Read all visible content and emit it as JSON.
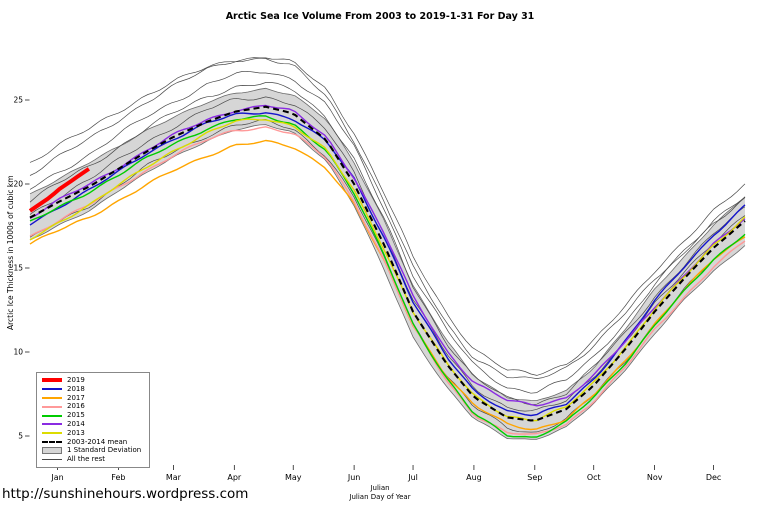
{
  "page": {
    "footer_url": "http://sunshinehours.wordpress.com"
  },
  "chart_data": {
    "type": "line",
    "title": "Arctic Sea Ice Volume From 2003 to 2019-1-31  For Day 31",
    "ylabel": "Arctic Ice Thickness in 1000s of cubic km",
    "xlabel_line1": "Julian",
    "xlabel_line2": "Julian Day of Year",
    "ylim": [
      4,
      28.5
    ],
    "yticks": [
      5,
      10,
      15,
      20,
      25
    ],
    "months": [
      "Jan",
      "Feb",
      "Mar",
      "Apr",
      "May",
      "Jun",
      "Jul",
      "Aug",
      "Sep",
      "Oct",
      "Nov",
      "Dec"
    ],
    "month_days": [
      15,
      46,
      74,
      105,
      135,
      166,
      196,
      227,
      258,
      288,
      319,
      349
    ],
    "grid": false,
    "legend_position": "bottom-left",
    "x": [
      1,
      15,
      32,
      46,
      60,
      74,
      91,
      105,
      121,
      135,
      152,
      166,
      182,
      196,
      213,
      227,
      244,
      258,
      274,
      288,
      305,
      319,
      335,
      349,
      365
    ],
    "mean": {
      "name": "2003-2014 mean",
      "color": "#000000",
      "values": [
        18.0,
        18.9,
        19.9,
        20.9,
        21.9,
        22.8,
        23.7,
        24.3,
        24.6,
        24.2,
        22.6,
        20.0,
        16.2,
        12.4,
        9.3,
        7.3,
        6.1,
        5.9,
        6.6,
        8.0,
        10.3,
        12.4,
        14.5,
        16.2,
        17.8
      ]
    },
    "sd": [
      1.4,
      1.4,
      1.4,
      1.3,
      1.3,
      1.2,
      1.1,
      1.1,
      1.1,
      1.1,
      1.2,
      1.3,
      1.5,
      1.5,
      1.4,
      1.3,
      1.2,
      1.1,
      1.1,
      1.1,
      1.2,
      1.3,
      1.3,
      1.4,
      1.4
    ],
    "band_color": "#D6D6D6",
    "band_edge_color": "#6a6a6a",
    "rest_color": "#4a4a4a",
    "series": [
      {
        "name": "2018",
        "color": "#1414CC",
        "values": [
          17.6,
          18.6,
          19.7,
          20.7,
          21.8,
          22.7,
          23.6,
          24.1,
          24.3,
          23.9,
          22.5,
          20.3,
          16.7,
          13.0,
          9.7,
          7.7,
          6.5,
          6.2,
          6.9,
          8.4,
          10.8,
          13.0,
          15.2,
          17.0,
          18.7
        ]
      },
      {
        "name": "2017",
        "color": "#FFA500",
        "values": [
          16.4,
          17.2,
          18.1,
          19.0,
          19.9,
          20.8,
          21.7,
          22.3,
          22.5,
          22.2,
          21.0,
          18.8,
          15.2,
          11.6,
          8.6,
          6.8,
          5.7,
          5.4,
          6.0,
          7.4,
          9.6,
          11.7,
          13.8,
          15.5,
          16.9
        ]
      },
      {
        "name": "2016",
        "color": "#FF9999",
        "values": [
          16.9,
          17.8,
          18.8,
          19.8,
          20.8,
          21.7,
          22.6,
          23.2,
          23.4,
          23.0,
          21.5,
          19.0,
          15.3,
          11.5,
          8.3,
          6.3,
          5.2,
          5.0,
          5.7,
          7.1,
          9.2,
          11.3,
          13.4,
          15.1,
          16.6
        ]
      },
      {
        "name": "2015",
        "color": "#00CC00",
        "values": [
          17.7,
          18.6,
          19.6,
          20.5,
          21.5,
          22.4,
          23.3,
          23.8,
          24.0,
          23.6,
          22.0,
          19.4,
          15.6,
          11.7,
          8.4,
          6.3,
          5.1,
          4.9,
          5.8,
          7.3,
          9.5,
          11.6,
          13.7,
          15.5,
          17.1
        ]
      },
      {
        "name": "2014",
        "color": "#8A2BE2",
        "values": [
          18.0,
          19.0,
          20.0,
          21.0,
          22.0,
          22.9,
          23.8,
          24.4,
          24.7,
          24.3,
          22.8,
          20.4,
          16.9,
          13.3,
          10.1,
          8.2,
          7.1,
          6.8,
          7.3,
          8.6,
          10.7,
          12.7,
          14.7,
          16.4,
          17.9
        ]
      },
      {
        "name": "2013",
        "color": "#DCDC00",
        "values": [
          16.7,
          17.7,
          18.8,
          19.9,
          21.0,
          22.0,
          23.0,
          23.7,
          23.9,
          23.5,
          22.0,
          19.6,
          16.0,
          12.4,
          9.3,
          7.4,
          6.2,
          5.9,
          6.7,
          8.2,
          10.4,
          12.5,
          14.6,
          16.4,
          18.0
        ]
      }
    ],
    "series_2019": {
      "name": "2019",
      "color": "#FF0000",
      "x": [
        1,
        6,
        11,
        16,
        21,
        26,
        31
      ],
      "values": [
        18.4,
        18.8,
        19.2,
        19.7,
        20.1,
        20.5,
        20.9
      ]
    },
    "all_the_rest": [
      [
        20.6,
        21.6,
        22.7,
        23.8,
        24.9,
        25.8,
        26.8,
        27.4,
        27.6,
        27.2,
        25.6,
        23.1,
        19.3,
        15.6,
        12.3,
        10.2,
        8.9,
        8.6,
        9.3,
        10.7,
        12.8,
        14.8,
        16.8,
        18.4,
        19.9
      ],
      [
        19.7,
        20.7,
        21.8,
        22.9,
        24.0,
        24.9,
        25.9,
        26.5,
        26.7,
        26.3,
        24.7,
        22.2,
        18.4,
        14.6,
        11.3,
        9.2,
        7.9,
        7.6,
        8.3,
        9.7,
        11.9,
        14.0,
        16.0,
        17.7,
        19.2
      ],
      [
        19.0,
        20.0,
        21.1,
        22.2,
        23.3,
        24.2,
        25.2,
        25.8,
        26.0,
        25.6,
        24.0,
        21.5,
        17.7,
        13.9,
        10.6,
        8.5,
        7.2,
        6.9,
        7.6,
        9.1,
        11.2,
        13.3,
        15.3,
        17.0,
        18.6
      ],
      [
        18.2,
        19.2,
        20.3,
        21.4,
        22.5,
        23.4,
        24.4,
        25.0,
        25.2,
        24.8,
        23.2,
        20.7,
        16.9,
        13.1,
        9.9,
        7.9,
        6.7,
        6.4,
        7.1,
        8.6,
        10.7,
        12.8,
        14.9,
        16.6,
        18.1
      ],
      [
        16.7,
        17.7,
        18.8,
        19.9,
        21.0,
        21.9,
        22.9,
        23.5,
        23.7,
        23.3,
        21.7,
        19.2,
        15.4,
        11.7,
        8.6,
        6.7,
        5.5,
        5.2,
        6.0,
        7.4,
        9.6,
        11.7,
        13.8,
        15.5,
        17.0
      ],
      [
        21.3,
        22.3,
        23.3,
        24.3,
        25.3,
        26.1,
        26.9,
        27.4,
        27.5,
        27.0,
        25.2,
        22.6,
        18.8,
        15.0,
        11.7,
        9.7,
        8.5,
        8.3,
        9.1,
        10.4,
        12.4,
        14.3,
        16.2,
        17.8,
        19.2
      ]
    ]
  },
  "legend": {
    "items": [
      {
        "label": "2019",
        "swatch": "thick",
        "color": "#FF0000"
      },
      {
        "label": "2018",
        "swatch": "line",
        "color": "#1414CC"
      },
      {
        "label": "2017",
        "swatch": "line",
        "color": "#FFA500"
      },
      {
        "label": "2016",
        "swatch": "line",
        "color": "#FF9999"
      },
      {
        "label": "2015",
        "swatch": "line",
        "color": "#00CC00"
      },
      {
        "label": "2014",
        "swatch": "line",
        "color": "#8A2BE2"
      },
      {
        "label": "2013",
        "swatch": "line",
        "color": "#DCDC00"
      },
      {
        "label": "2003-2014 mean",
        "swatch": "dashed",
        "color": "#000000"
      },
      {
        "label": "1 Standard Deviation",
        "swatch": "box",
        "color": "#D6D6D6"
      },
      {
        "label": "All the rest",
        "swatch": "thin",
        "color": "#4a4a4a"
      }
    ]
  }
}
